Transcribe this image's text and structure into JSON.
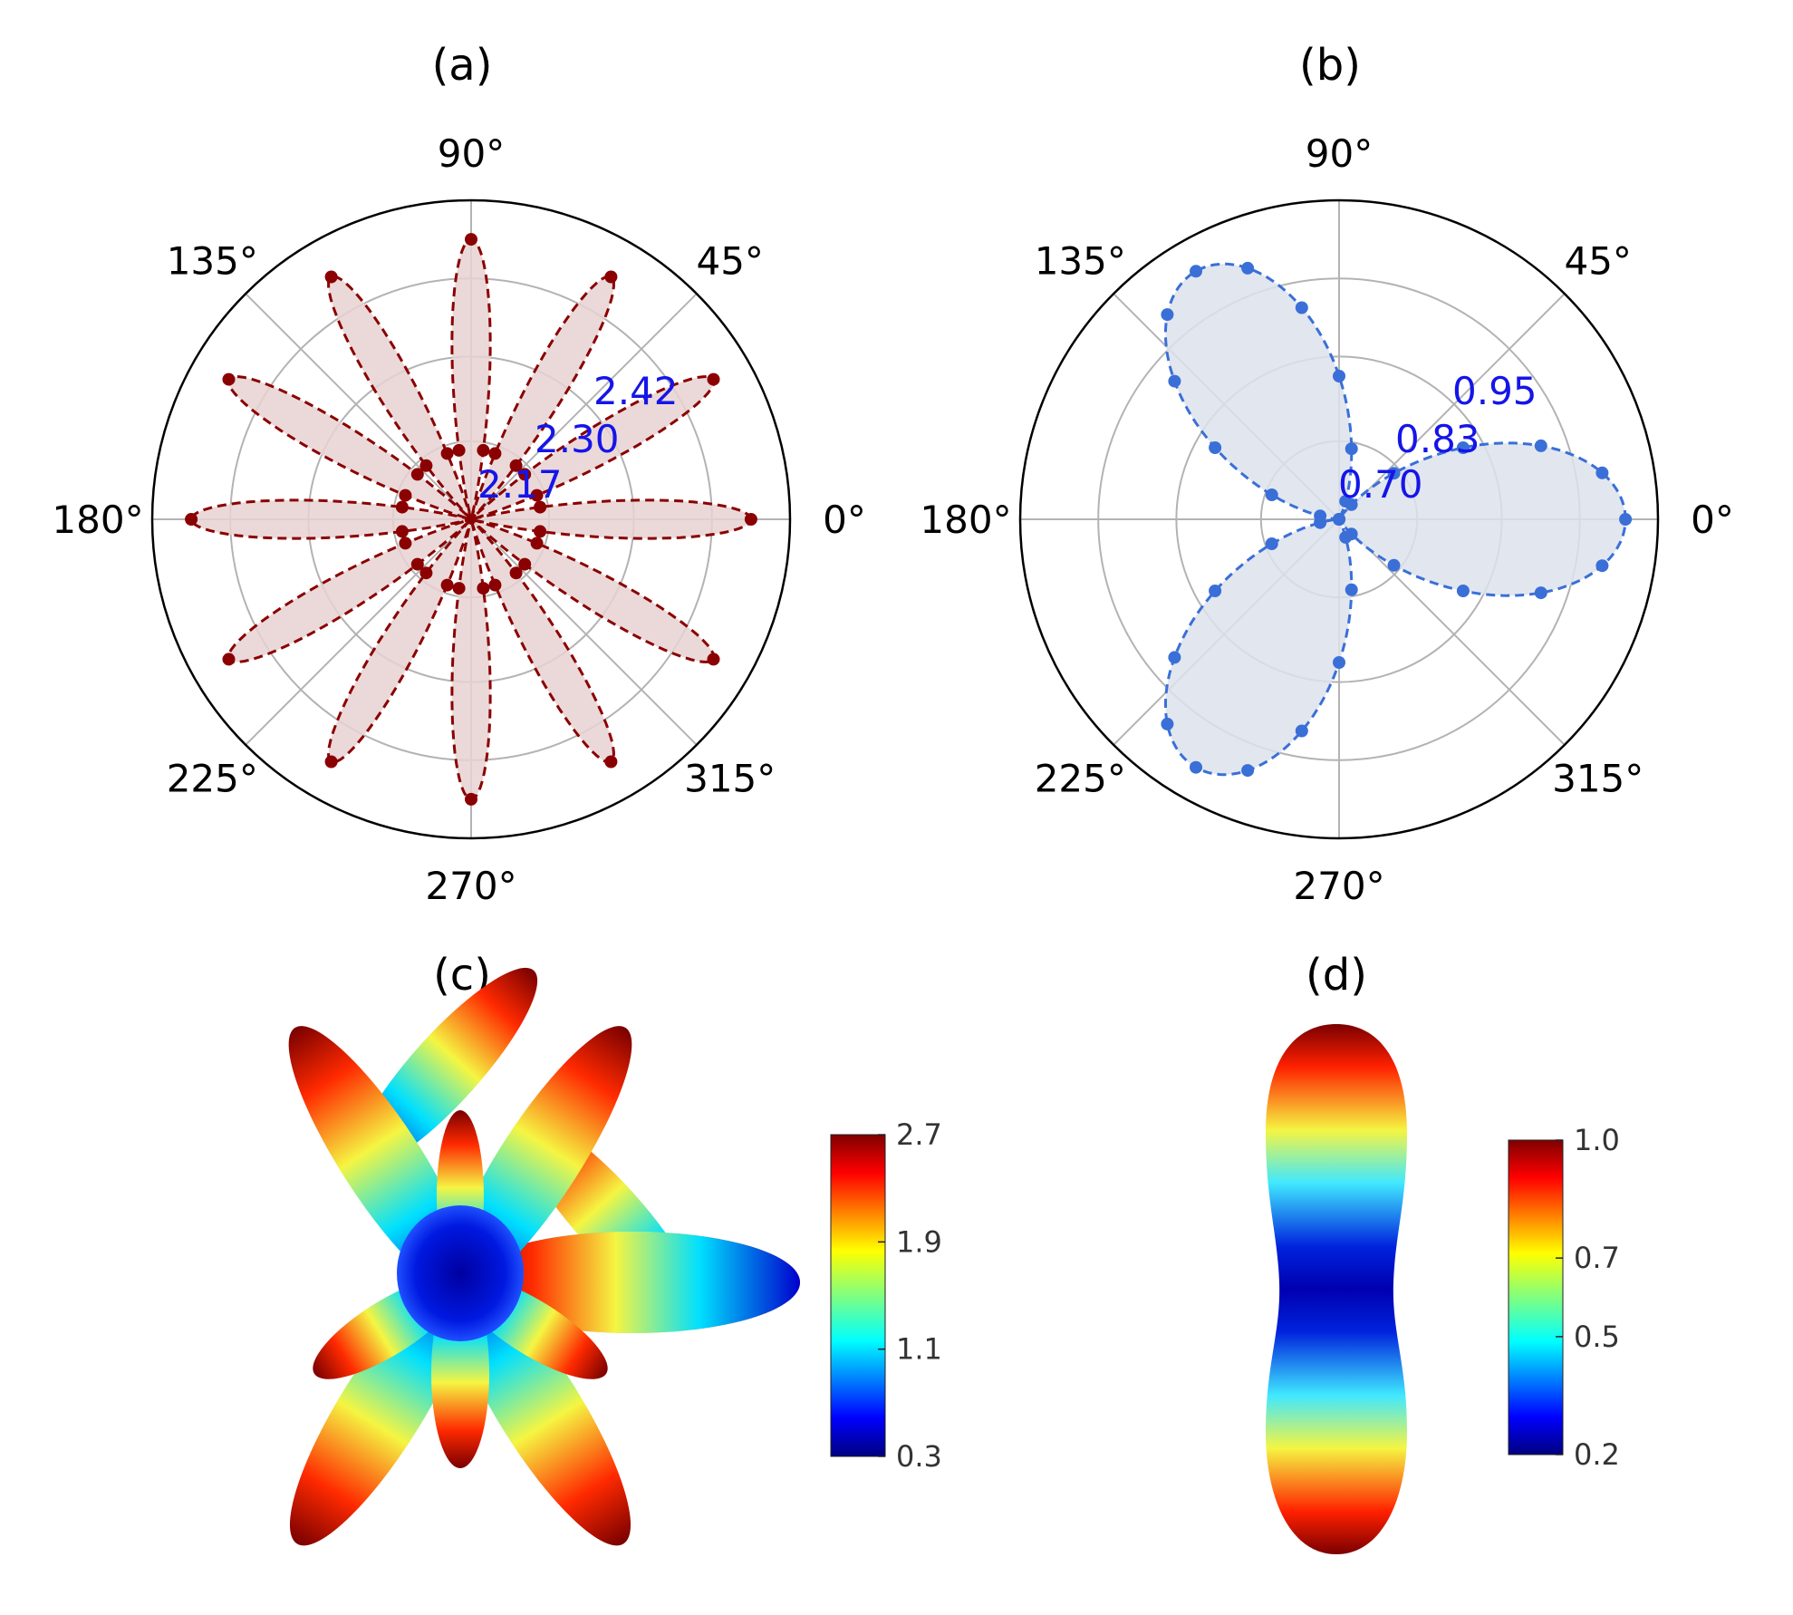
{
  "panels": {
    "a": {
      "label": "(a)"
    },
    "b": {
      "label": "(b)"
    },
    "c": {
      "label": "(c)"
    },
    "d": {
      "label": "(d)"
    }
  },
  "chart_data": [
    {
      "id": "a",
      "type": "polar",
      "title": "(a)",
      "angle_ticks": [
        "0°",
        "45°",
        "90°",
        "135°",
        "180°",
        "225°",
        "270°",
        "315°"
      ],
      "radial_ticks": [
        "2.17",
        "2.30",
        "2.42"
      ],
      "radial_tick_values": [
        2.17,
        2.3,
        2.42
      ],
      "r_origin": 2.05,
      "r_outer": 2.54,
      "angular_offset_deg": 0,
      "lobes": 12,
      "r_min": 2.05,
      "r_max": 2.48,
      "marker_step_deg": 10,
      "colors": {
        "line": "#8b0000",
        "fill": "#e8d2d2",
        "tick_labels": "#1515e8"
      }
    },
    {
      "id": "b",
      "type": "polar",
      "title": "(b)",
      "angle_ticks": [
        "0°",
        "45°",
        "90°",
        "135°",
        "180°",
        "225°",
        "270°",
        "315°"
      ],
      "radial_ticks": [
        "0.70",
        "0.83",
        "0.95"
      ],
      "radial_tick_values": [
        0.7,
        0.83,
        0.95
      ],
      "r_origin": 0.58,
      "r_outer": 1.07,
      "angular_offset_deg": 0,
      "lobes": 3,
      "r_min": 0.58,
      "r_max": 1.02,
      "marker_step_deg": 10,
      "colors": {
        "line": "#3a6fd8",
        "fill": "#dde2ec",
        "tick_labels": "#1515e8"
      }
    },
    {
      "id": "c",
      "type": "3d-surface",
      "title": "(c)",
      "colorbar": {
        "min": 0.3,
        "max": 2.7,
        "ticks": [
          "2.7",
          "1.9",
          "1.1",
          "0.3"
        ],
        "colormap": "jet"
      }
    },
    {
      "id": "d",
      "type": "3d-surface",
      "title": "(d)",
      "colorbar": {
        "min": 0.2,
        "max": 1.0,
        "ticks": [
          "1.0",
          "0.7",
          "0.5",
          "0.2"
        ],
        "colormap": "jet"
      }
    }
  ]
}
